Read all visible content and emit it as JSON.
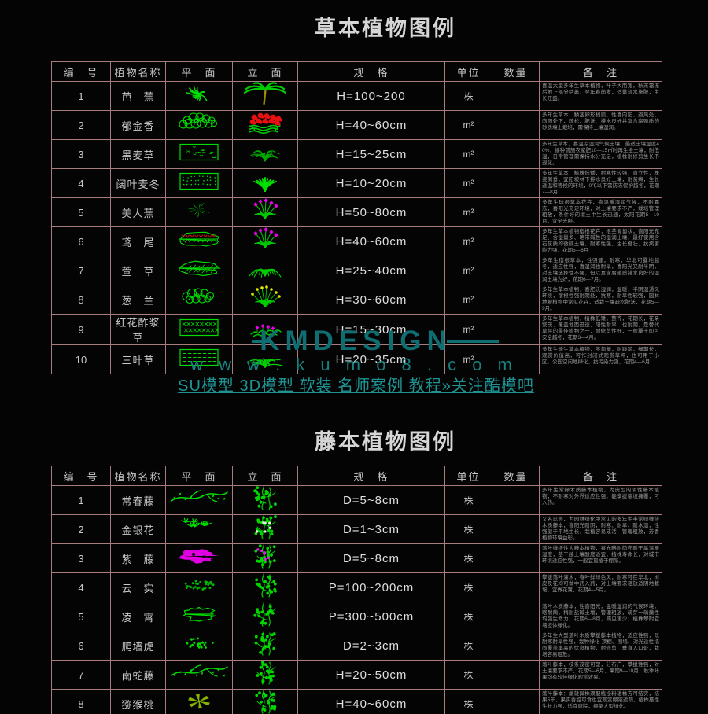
{
  "page": {
    "bg": "#040405",
    "border_color": "#a87c7c",
    "text_color": "#c9c9c9"
  },
  "watermark": {
    "brand": "KMDESIGN",
    "url": "w w w . k u m o 8 . c o m",
    "links": "SU模型 3D模型 软装 名师案例 教程»关注酷模吧",
    "color": "#0e6e72"
  },
  "tables": [
    {
      "title": "草本植物图例",
      "headers": [
        "编　号",
        "植物名称",
        "平　面",
        "立　面",
        "规　格",
        "单位",
        "数量",
        "备　注"
      ],
      "rows": [
        {
          "no": "1",
          "name": "芭　蕉",
          "spec": "H=100~200",
          "unit": "株",
          "qty": "",
          "plan": {
            "t": "starburst",
            "c": "#00e000"
          },
          "elev": {
            "t": "palm",
            "c": "#00cc00",
            "a": "#9a8c00"
          },
          "remark": "喜温大型多年生草本植物，叶子大而宽，秋末霜冻后地上部分枯萎，翌年春萌发，适量浇水施肥，生长旺盛。"
        },
        {
          "no": "2",
          "name": "郁金香",
          "spec": "H=40~60cm",
          "unit": "m²",
          "qty": "",
          "plan": {
            "t": "bubblepile",
            "c": "#00e000"
          },
          "elev": {
            "t": "tulips",
            "c": "#00cc00",
            "a": "#e81111"
          },
          "remark": "多年生草本，鳞茎卵形稍扁，性喜向阳、避风处，向阳处下，疏松、肥沃、排水良好并富含腐殖质的砂质壤土栽培，需保持土壤湿润。"
        },
        {
          "no": "3",
          "name": "黑麦草",
          "spec": "H=15~25cm",
          "unit": "m²",
          "qty": "",
          "plan": {
            "t": "rect",
            "p": "speckle",
            "c": "#00dd00"
          },
          "elev": {
            "t": "densetuft",
            "c": "#00a800"
          },
          "remark": "多年生草本，喜温凉湿润气候土壤，最适土壤湿度40%，播种前施农家肥10—15㎡时再生全土壤，耐低温，日常管理需保持水分充足，植株耐修剪生长不退化。"
        },
        {
          "no": "4",
          "name": "阔叶麦冬",
          "spec": "H=10~20cm",
          "unit": "m²",
          "qty": "",
          "plan": {
            "t": "rect",
            "p": "dots",
            "c": "#00dd00"
          },
          "elev": {
            "t": "blades",
            "c": "#00e000"
          },
          "remark": "多年生草本，植株低矮，耐寒性较强，直立性，株姿倒垂，宜阳坡林下排水良好土壤，耐贫瘠，生长适温和等候的环境，0℃以下需防冻保护越冬，花期7—8月"
        },
        {
          "no": "5",
          "name": "美人蕉",
          "spec": "H=50~80cm",
          "unit": "m²",
          "qty": "",
          "plan": {
            "t": "spiky",
            "c": "#00d000"
          },
          "elev": {
            "t": "stemflowers",
            "c": "#00cc00",
            "a": "#e800e8"
          },
          "remark": "多年生球根草本花卉，喜温暖湿润气候，不耐霜冻，喜阳光充足环境，对土壤要求不严，栽培管理粗放，条件好的壤土中生长迅速，太阳花期5—10月，宜全光照。"
        },
        {
          "no": "6",
          "name": "鸢　尾",
          "spec": "H=40~60cm",
          "unit": "m²",
          "qty": "",
          "plan": {
            "t": "vcluster",
            "c": "#00dd00",
            "a": "#e01010"
          },
          "elev": {
            "t": "stemflowers",
            "c": "#00cc00",
            "a": "#e800e8"
          },
          "remark": "多年生草本植物宿根花卉，根茎匍匐状，喜阳光充足、含湿量多、略带碱性的湿润土壤，最好使用含石灰质的微碱土壤，耐寒性强，生长健壮，抗病害能力强，花期5—6月"
        },
        {
          "no": "7",
          "name": "萱　草",
          "spec": "H=25~40cm",
          "unit": "m²",
          "qty": "",
          "plan": {
            "t": "hatchcloud",
            "c": "#00dd00"
          },
          "elev": {
            "t": "spider",
            "c": "#00cc00"
          },
          "remark": "多年生宿根草本，性强健，耐寒，华北可露地越冬，适应性强，喜湿润也耐旱，喜阳光又耐半阴，对土壤选择性不强，但以富含腐殖质排水良好的湿润土壤为好，花期6—7月。"
        },
        {
          "no": "8",
          "name": "葱　兰",
          "spec": "H=30~60cm",
          "unit": "m²",
          "qty": "",
          "plan": {
            "t": "bubblecloud",
            "c": "#00dd00"
          },
          "elev": {
            "t": "tuftdots",
            "c": "#00cc00",
            "a": "#e8e800"
          },
          "remark": "多年生草本植物，喜肥沃湿润，温暖，半阴湿通风环境，宿根性强耐阴处，抗寒，耐旱性较强，园林地被植物中常见花卉，适栽土壤疏松肥沃，花期5—9月。"
        },
        {
          "no": "9",
          "name": "红花酢浆草",
          "spec": "H=15~30cm",
          "unit": "m²",
          "qty": "",
          "plan": {
            "t": "rect",
            "p": "diamond",
            "c": "#00dd00"
          },
          "elev": {
            "t": "lowflowers",
            "c": "#00cc00",
            "a": "#e800e8"
          },
          "remark": "多年生草本植物，植株低矮，整齐，花期长，花朵繁茂，覆盖地面迅速，阳性耐旱，也耐阴，是替代草坪的最佳植物之一，耐修剪性好，一般覆土即可安全越冬，花期3—4月。"
        },
        {
          "no": "10",
          "name": "三叶草",
          "spec": "H=20~35cm",
          "unit": "m²",
          "qty": "",
          "plan": {
            "t": "rect",
            "p": "dash",
            "c": "#00dd00"
          },
          "elev": {
            "t": "lowtuft",
            "c": "#00d000"
          },
          "remark": "多年生矮生草本植物，茎匍匐，耐践踏，绿期长，观赏价值高，可作封闭式观赏草坪，也可用于小区，公园空闲地绿化，抗污染力强，花期4—6月"
        }
      ]
    },
    {
      "title": "藤本植物图例",
      "headers": [
        "编　号",
        "植物名称",
        "平　面",
        "立　面",
        "规　格",
        "单位",
        "数量",
        "备　注"
      ],
      "rows": [
        {
          "no": "1",
          "name": "常春藤",
          "spec": "D=5~8cm",
          "unit": "株",
          "qty": "",
          "plan": {
            "t": "vineh",
            "c": "#00e000"
          },
          "elev": {
            "t": "vinev",
            "c": "#00d800"
          },
          "remark": "多年生常绿木质藤本植物，为典型的阴性藤本植物，不耐寒对外界适应性强，能攀援墙垣掩覆，可入药。"
        },
        {
          "no": "2",
          "name": "金银花",
          "spec": "D=1~3cm",
          "unit": "株",
          "qty": "",
          "plan": {
            "t": "leafspread",
            "c": "#00e000"
          },
          "elev": {
            "t": "vinev",
            "c": "#00d800",
            "a": "#e8e8e8"
          },
          "remark": "又名忍冬，为园林绿化中常见的多年生半常绿缠绕木质藤本，喜阳光耐阴，耐寒、耐旱、耐水湿，性强健于平地生长，栽植容易成活，管理粗放，芳香植物环境益彰。"
        },
        {
          "no": "3",
          "name": "紫　藤",
          "spec": "D=5~8cm",
          "unit": "株",
          "qty": "",
          "plan": {
            "t": "blob",
            "c": "#e000e0"
          },
          "elev": {
            "t": "vinev",
            "c": "#00d800",
            "a": "#dd22dd"
          },
          "remark": "落叶缠绕性大藤本植物，喜光略耐荫亦耐干旱温暖湿度，茎干越土壤酸度适宜，植株寿命长，对城市环境适应性强，一般宜孤植于棚架。"
        },
        {
          "no": "4",
          "name": "云　实",
          "spec": "P=100~200cm",
          "unit": "株",
          "qty": "",
          "plan": {
            "t": "dense",
            "c": "#00b800"
          },
          "elev": {
            "t": "vinev",
            "c": "#00d800"
          },
          "remark": "攀援落叶灌木，春叶鲜绿色风，耐寒可在华北，树皮及花均可做中药入药，对土壤要求粗放适阴地栽培，宜做花篱，花期4—5月。"
        },
        {
          "no": "5",
          "name": "凌　霄",
          "spec": "P=300~500cm",
          "unit": "株",
          "qty": "",
          "plan": {
            "t": "scribble",
            "c": "#00dd00"
          },
          "elev": {
            "t": "vinev",
            "c": "#00d800"
          },
          "remark": "落叶木质藤本，性喜阳光，温暖湿润的气候环境，略耐荫，稍耐盐碱土壤，管理粗放，萌芽一萌蘖性均强生命力，花期6—8月，病虫害少，植株攀附宜墙垣体绿化。"
        },
        {
          "no": "6",
          "name": "爬墙虎",
          "spec": "D=2~3cm",
          "unit": "株",
          "qty": "",
          "plan": {
            "t": "dense",
            "c": "#00d800"
          },
          "elev": {
            "t": "vinev",
            "c": "#00d800"
          },
          "remark": "多年生大型落叶木质攀援藤本植物，适应性强，既耐寒耐旱性强，栽种绿化 顶棚、围墙、对光适性墙面覆盖率高的优良植物，耐修剪，垂直入口处，栽培容易粗放。"
        },
        {
          "no": "7",
          "name": "南蛇藤",
          "spec": "H=20~50cm",
          "unit": "株",
          "qty": "",
          "plan": {
            "t": "vineh",
            "c": "#00d800"
          },
          "elev": {
            "t": "vinev",
            "c": "#00d800"
          },
          "remark": "落叶藤本，枝条茂密可塑，分布广，攀援性强，对土壤要求不严，花期5—6月，果期9—10月，秋季叶果均有较佳绿化观赏效果。"
        },
        {
          "no": "8",
          "name": "猕猴桃",
          "spec": "H=40~60cm",
          "unit": "株",
          "qty": "",
          "plan": {
            "t": "olivestar",
            "c": "#86b300"
          },
          "elev": {
            "t": "vinev",
            "c": "#00d800"
          },
          "remark": "落叶藤本：雌雄异株须配植授粉雄株方可结实，结果5年，果实香甜可食也宜观赏棚架遮荫，植株蔓性生长力强，适宜庭院，棚架大型绿化。"
        }
      ]
    }
  ]
}
